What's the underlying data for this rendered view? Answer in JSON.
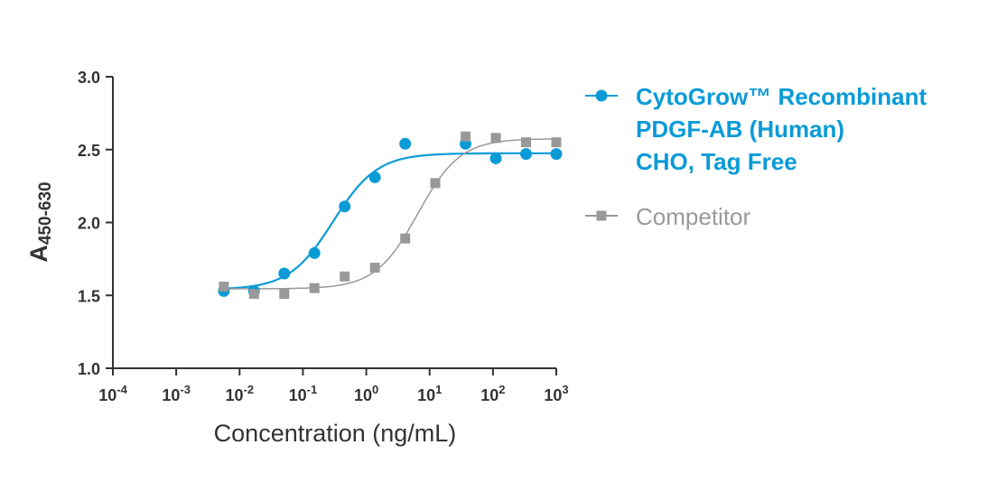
{
  "chart_data": {
    "type": "scatter",
    "title": "",
    "xlabel": "Concentration (ng/mL)",
    "ylabel_main": "A",
    "ylabel_sub": "450-630",
    "xscale": "log",
    "xlim": [
      0.0001,
      1000
    ],
    "ylim": [
      1.0,
      3.0
    ],
    "x_ticks": [
      {
        "base": "10",
        "exp": "-4"
      },
      {
        "base": "10",
        "exp": "-3"
      },
      {
        "base": "10",
        "exp": "-2"
      },
      {
        "base": "10",
        "exp": "-1"
      },
      {
        "base": "10",
        "exp": "0"
      },
      {
        "base": "10",
        "exp": "1"
      },
      {
        "base": "10",
        "exp": "2"
      },
      {
        "base": "10",
        "exp": "3"
      }
    ],
    "y_ticks": [
      "1.0",
      "1.5",
      "2.0",
      "2.5",
      "3.0"
    ],
    "grid": false,
    "legend_position": "right",
    "series": [
      {
        "name_lines": [
          "CytoGrow™ Recombinant",
          "PDGF-AB (Human)",
          "CHO, Tag Free"
        ],
        "color": "#0a9bd7",
        "marker": "circle",
        "x": [
          0.00565,
          0.0169,
          0.0508,
          0.152,
          0.457,
          1.37,
          4.12,
          37.0,
          111,
          333,
          1000
        ],
        "y": [
          1.53,
          1.53,
          1.65,
          1.79,
          2.11,
          2.31,
          2.54,
          2.54,
          2.44,
          2.47,
          2.47
        ],
        "fit": {
          "model": "4PL",
          "bottom": 1.54,
          "top": 2.475,
          "ec50": 0.3,
          "hill": 1.25
        }
      },
      {
        "name_lines": [
          "Competitor"
        ],
        "color": "#999999",
        "marker": "square",
        "x": [
          0.00565,
          0.0169,
          0.0508,
          0.152,
          0.457,
          1.37,
          4.12,
          12.3,
          37.0,
          111,
          333,
          1000
        ],
        "y": [
          1.56,
          1.51,
          1.51,
          1.55,
          1.63,
          1.69,
          1.89,
          2.27,
          2.59,
          2.58,
          2.55,
          2.55
        ],
        "fit": {
          "model": "4PL",
          "bottom": 1.545,
          "top": 2.575,
          "ec50": 6.5,
          "hill": 1.3
        }
      }
    ]
  }
}
